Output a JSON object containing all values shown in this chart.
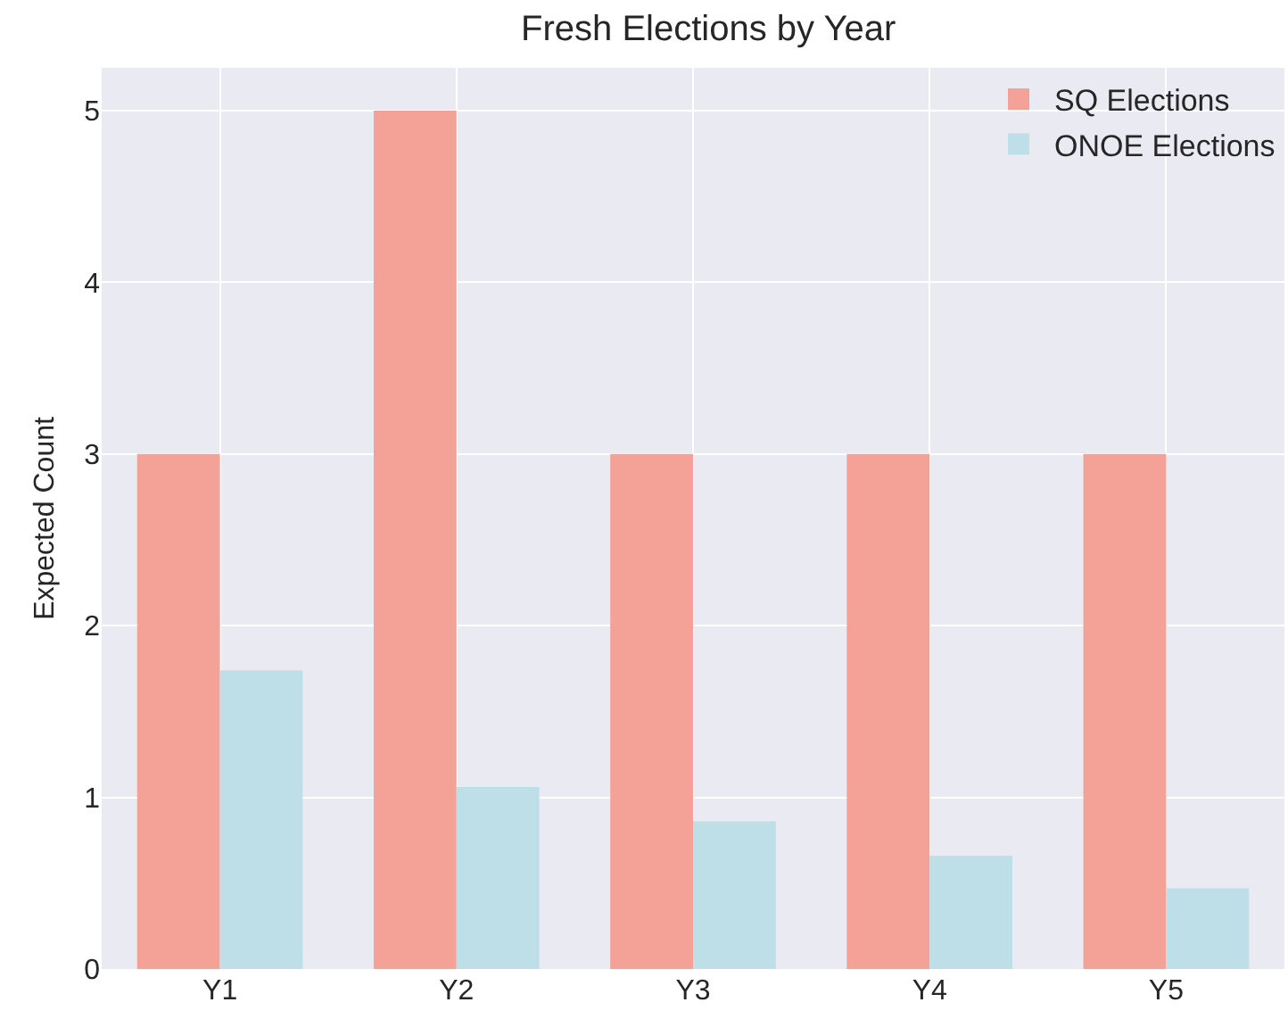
{
  "chart_data": {
    "type": "bar",
    "title": "Fresh Elections by Year",
    "ylabel": "Expected Count",
    "categories": [
      "Y1",
      "Y2",
      "Y3",
      "Y4",
      "Y5"
    ],
    "series": [
      {
        "name": "SQ Elections",
        "color": "#f4a197",
        "values": [
          3,
          5,
          3,
          3,
          3
        ]
      },
      {
        "name": "ONOE Elections",
        "color": "#bfdfe8",
        "values": [
          1.74,
          1.06,
          0.86,
          0.66,
          0.47
        ]
      }
    ],
    "ylim": [
      0,
      5.25
    ],
    "yticks": [
      0,
      1,
      2,
      3,
      4,
      5
    ],
    "grid": true,
    "legend": "top right"
  }
}
